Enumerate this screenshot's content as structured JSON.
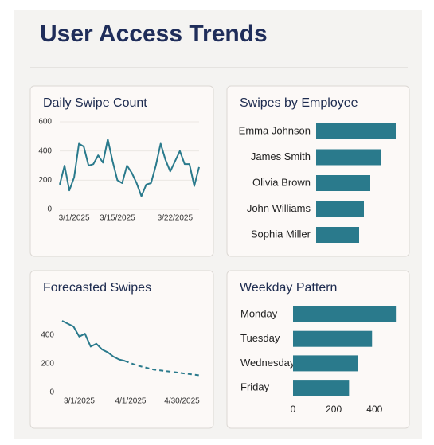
{
  "header": {
    "title": "User Access Trends"
  },
  "chart_data": [
    {
      "type": "line",
      "title": "Daily Swipe Count",
      "categories": [
        null,
        null,
        null,
        "3/1/2025",
        null,
        null,
        null,
        null,
        null,
        null,
        null,
        null,
        "3/15/2025",
        null,
        null,
        null,
        null,
        null,
        null,
        null,
        null,
        null,
        null,
        null,
        "3/22/2025",
        null,
        null,
        null,
        null,
        null
      ],
      "series": [
        {
          "color": "#2a7a8c",
          "values": [
            170,
            300,
            130,
            220,
            450,
            430,
            300,
            310,
            370,
            320,
            480,
            330,
            200,
            180,
            300,
            250,
            180,
            90,
            170,
            180,
            300,
            450,
            340,
            260,
            330,
            400,
            310,
            310,
            160,
            290
          ]
        }
      ],
      "ylim": [
        0,
        600
      ],
      "yticks": [
        0,
        200,
        400,
        600
      ],
      "grid": true
    },
    {
      "type": "hbar",
      "title": "Swipes by Employee",
      "categories": [
        "Emma Johnson",
        "James Smith",
        "Olivia Brown",
        "John Williams",
        "Sophia Miller"
      ],
      "values": [
        100,
        82,
        68,
        60,
        54
      ],
      "color": "#2a7a8c",
      "xlim": [
        0,
        100
      ]
    },
    {
      "type": "line",
      "title": "Forecasted Swipes",
      "categories": [
        null,
        null,
        null,
        "3/1/2025",
        null,
        null,
        null,
        null,
        null,
        null,
        null,
        null,
        "4/1/2025",
        null,
        null,
        null,
        null,
        null,
        null,
        null,
        null,
        "4/30/2025",
        null,
        null,
        null
      ],
      "series": [
        {
          "color": "#2a7a8c",
          "dashed": false,
          "values": [
            500,
            480,
            460,
            390,
            410,
            320,
            340,
            300,
            280,
            250,
            230,
            220,
            null,
            null,
            null,
            null,
            null,
            null,
            null,
            null,
            null,
            null,
            null,
            null,
            null
          ]
        },
        {
          "color": "#2a7a8c",
          "dashed": true,
          "values": [
            null,
            null,
            null,
            null,
            null,
            null,
            null,
            null,
            null,
            null,
            null,
            220,
            205,
            190,
            180,
            170,
            160,
            155,
            150,
            145,
            140,
            135,
            130,
            125,
            120
          ]
        }
      ],
      "ylim": [
        0,
        600
      ],
      "yticks": [
        0,
        200,
        400
      ],
      "grid": false
    },
    {
      "type": "hbar",
      "title": "Weekday Pattern",
      "categories": [
        "Monday",
        "Tuesday",
        "Wednesday",
        "Friday"
      ],
      "values": [
        505,
        388,
        318,
        275
      ],
      "color": "#2a7a8c",
      "xlim": [
        0,
        520
      ],
      "xticks": [
        0,
        200,
        400
      ]
    }
  ]
}
